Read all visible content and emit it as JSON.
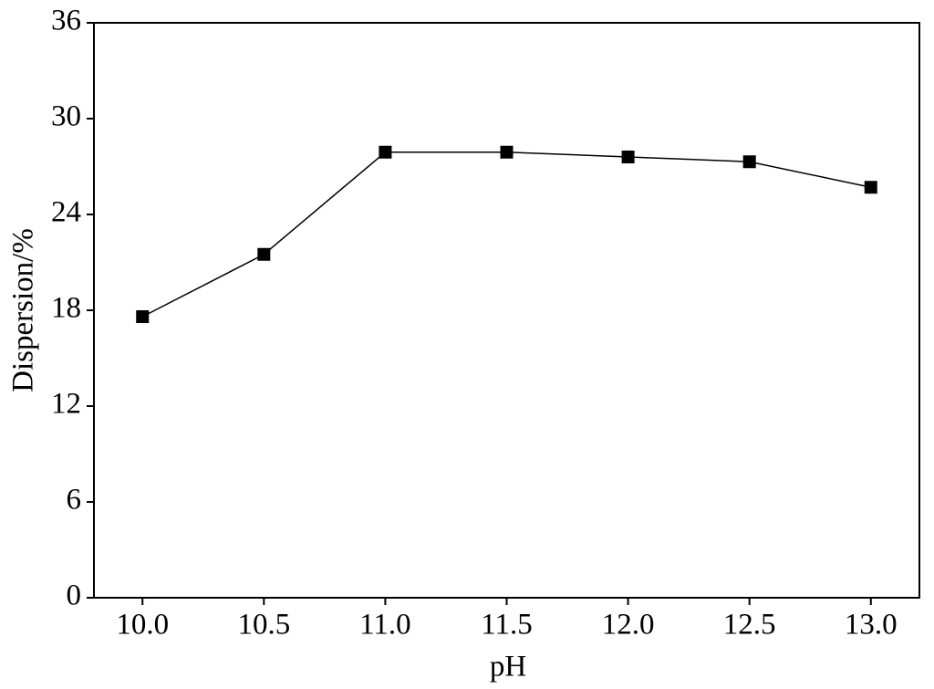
{
  "chart_data": {
    "type": "line",
    "x_label": "pH",
    "y_label": "Dispersion/%",
    "x": [
      10.0,
      10.5,
      11.0,
      11.5,
      12.0,
      12.5,
      13.0
    ],
    "series": [
      {
        "color": "#000000",
        "values": [
          17.6,
          21.5,
          27.9,
          27.9,
          27.6,
          27.3,
          25.7
        ]
      }
    ],
    "xlim": [
      9.8,
      13.2
    ],
    "xticks": [
      {
        "value": 10,
        "label": "10.0"
      },
      10.5,
      {
        "value": 11,
        "label": "11.0"
      },
      11.5,
      {
        "value": 12,
        "label": "12.0"
      },
      12.5,
      {
        "value": 13,
        "label": "13.0"
      }
    ],
    "ylim": [
      0,
      36
    ],
    "yticks": [
      0,
      6,
      12,
      18,
      24,
      30,
      36
    ],
    "grid": false,
    "marker": "square"
  }
}
